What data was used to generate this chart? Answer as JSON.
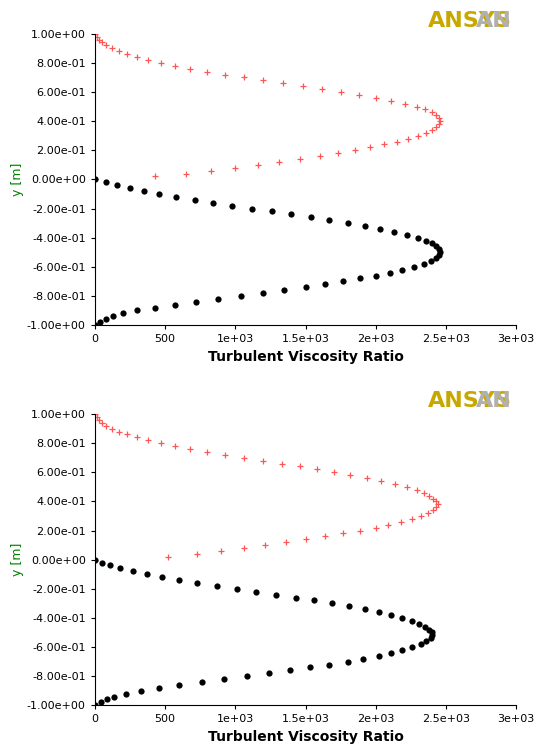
{
  "background_color": "#ffffff",
  "plot_bg_color": "#ffffff",
  "xlabel": "Turbulent Viscosity Ratio",
  "ylabel": "y [m]",
  "xlim": [
    0,
    3000
  ],
  "ylim": [
    -1.0,
    1.0
  ],
  "xticks": [
    0,
    500,
    1000,
    1500,
    2000,
    2500,
    3000
  ],
  "xtick_labels": [
    "0",
    "500",
    "1e+03",
    "1.5e+03",
    "2e+03",
    "2.5e+03",
    "3e+03"
  ],
  "yticks": [
    -1.0,
    -0.8,
    -0.6,
    -0.4,
    -0.2,
    0.0,
    0.2,
    0.4,
    0.6,
    0.8,
    1.0
  ],
  "ytick_labels": [
    "-1.00e+00",
    "-8.00e-01",
    "-6.00e-01",
    "-4.00e-01",
    "-2.00e-01",
    "0.00e+00",
    "2.00e-01",
    "4.00e-01",
    "6.00e-01",
    "8.00e-01",
    "1.00e+00"
  ],
  "red_color": "#ff5555",
  "black_color": "#000000",
  "tick_fontsize": 8,
  "label_fontsize": 9,
  "xlabel_fontsize": 10,
  "ylabel_color": "#008000",
  "ansys_gray": "#b0b0b0",
  "ansys_yellow": "#c8a800",
  "ansys_fontsize": 16,
  "top_red_y": [
    1.0,
    0.98,
    0.96,
    0.94,
    0.92,
    0.9,
    0.88,
    0.86,
    0.84,
    0.82,
    0.8,
    0.78,
    0.76,
    0.74,
    0.72,
    0.7,
    0.68,
    0.66,
    0.64,
    0.62,
    0.6,
    0.58,
    0.56,
    0.54,
    0.52,
    0.5,
    0.48,
    0.46,
    0.44,
    0.42,
    0.4,
    0.38,
    0.36,
    0.34,
    0.32,
    0.3,
    0.28,
    0.26,
    0.24,
    0.22,
    0.2,
    0.18,
    0.16,
    0.14,
    0.12,
    0.1,
    0.08,
    0.06,
    0.04,
    0.02,
    0.0
  ],
  "top_red_tvr": [
    5,
    15,
    30,
    50,
    80,
    120,
    170,
    230,
    300,
    380,
    470,
    570,
    680,
    800,
    930,
    1060,
    1200,
    1340,
    1480,
    1620,
    1750,
    1880,
    2000,
    2110,
    2210,
    2290,
    2350,
    2400,
    2430,
    2450,
    2460,
    2450,
    2430,
    2400,
    2360,
    2300,
    2230,
    2150,
    2060,
    1960,
    1850,
    1730,
    1600,
    1460,
    1310,
    1160,
    1000,
    830,
    650,
    430,
    5
  ],
  "top_black_y": [
    0.0,
    -0.02,
    -0.04,
    -0.06,
    -0.08,
    -0.1,
    -0.12,
    -0.14,
    -0.16,
    -0.18,
    -0.2,
    -0.22,
    -0.24,
    -0.26,
    -0.28,
    -0.3,
    -0.32,
    -0.34,
    -0.36,
    -0.38,
    -0.4,
    -0.42,
    -0.44,
    -0.46,
    -0.48,
    -0.5,
    -0.52,
    -0.54,
    -0.56,
    -0.58,
    -0.6,
    -0.62,
    -0.64,
    -0.66,
    -0.68,
    -0.7,
    -0.72,
    -0.74,
    -0.76,
    -0.78,
    -0.8,
    -0.82,
    -0.84,
    -0.86,
    -0.88,
    -0.9,
    -0.92,
    -0.94,
    -0.96,
    -0.98,
    -1.0
  ],
  "top_black_tvr": [
    5,
    80,
    160,
    250,
    350,
    460,
    580,
    710,
    840,
    980,
    1120,
    1260,
    1400,
    1540,
    1670,
    1800,
    1920,
    2030,
    2130,
    2220,
    2300,
    2360,
    2400,
    2430,
    2450,
    2460,
    2450,
    2430,
    2390,
    2340,
    2270,
    2190,
    2100,
    2000,
    1890,
    1770,
    1640,
    1500,
    1350,
    1200,
    1040,
    880,
    720,
    570,
    430,
    300,
    200,
    130,
    80,
    40,
    5
  ],
  "bot_red_y": [
    1.0,
    0.98,
    0.96,
    0.94,
    0.92,
    0.9,
    0.88,
    0.86,
    0.84,
    0.82,
    0.8,
    0.78,
    0.76,
    0.74,
    0.72,
    0.7,
    0.68,
    0.66,
    0.64,
    0.62,
    0.6,
    0.58,
    0.56,
    0.54,
    0.52,
    0.5,
    0.48,
    0.46,
    0.44,
    0.42,
    0.4,
    0.38,
    0.36,
    0.34,
    0.32,
    0.3,
    0.28,
    0.26,
    0.24,
    0.22,
    0.2,
    0.18,
    0.16,
    0.14,
    0.12,
    0.1,
    0.08,
    0.06,
    0.04,
    0.02,
    0.0
  ],
  "bot_red_tvr": [
    5,
    15,
    30,
    50,
    80,
    120,
    170,
    230,
    300,
    380,
    470,
    570,
    680,
    800,
    930,
    1060,
    1200,
    1330,
    1460,
    1580,
    1700,
    1820,
    1940,
    2040,
    2140,
    2220,
    2290,
    2340,
    2380,
    2410,
    2430,
    2440,
    2430,
    2410,
    2370,
    2320,
    2260,
    2180,
    2090,
    2000,
    1890,
    1770,
    1640,
    1500,
    1360,
    1210,
    1060,
    900,
    730,
    520,
    5
  ],
  "bot_black_y": [
    0.0,
    -0.02,
    -0.04,
    -0.06,
    -0.08,
    -0.1,
    -0.12,
    -0.14,
    -0.16,
    -0.18,
    -0.2,
    -0.22,
    -0.24,
    -0.26,
    -0.28,
    -0.3,
    -0.32,
    -0.34,
    -0.36,
    -0.38,
    -0.4,
    -0.42,
    -0.44,
    -0.46,
    -0.48,
    -0.5,
    -0.52,
    -0.54,
    -0.56,
    -0.58,
    -0.6,
    -0.62,
    -0.64,
    -0.66,
    -0.68,
    -0.7,
    -0.72,
    -0.74,
    -0.76,
    -0.78,
    -0.8,
    -0.82,
    -0.84,
    -0.86,
    -0.88,
    -0.9,
    -0.92,
    -0.94,
    -0.96,
    -0.98,
    -1.0
  ],
  "bot_black_tvr": [
    5,
    50,
    110,
    180,
    270,
    370,
    480,
    600,
    730,
    870,
    1010,
    1150,
    1290,
    1430,
    1560,
    1690,
    1810,
    1920,
    2020,
    2110,
    2190,
    2260,
    2310,
    2350,
    2380,
    2400,
    2400,
    2390,
    2360,
    2320,
    2260,
    2190,
    2110,
    2020,
    1910,
    1800,
    1670,
    1530,
    1390,
    1240,
    1080,
    920,
    760,
    600,
    460,
    330,
    220,
    140,
    85,
    42,
    5
  ]
}
